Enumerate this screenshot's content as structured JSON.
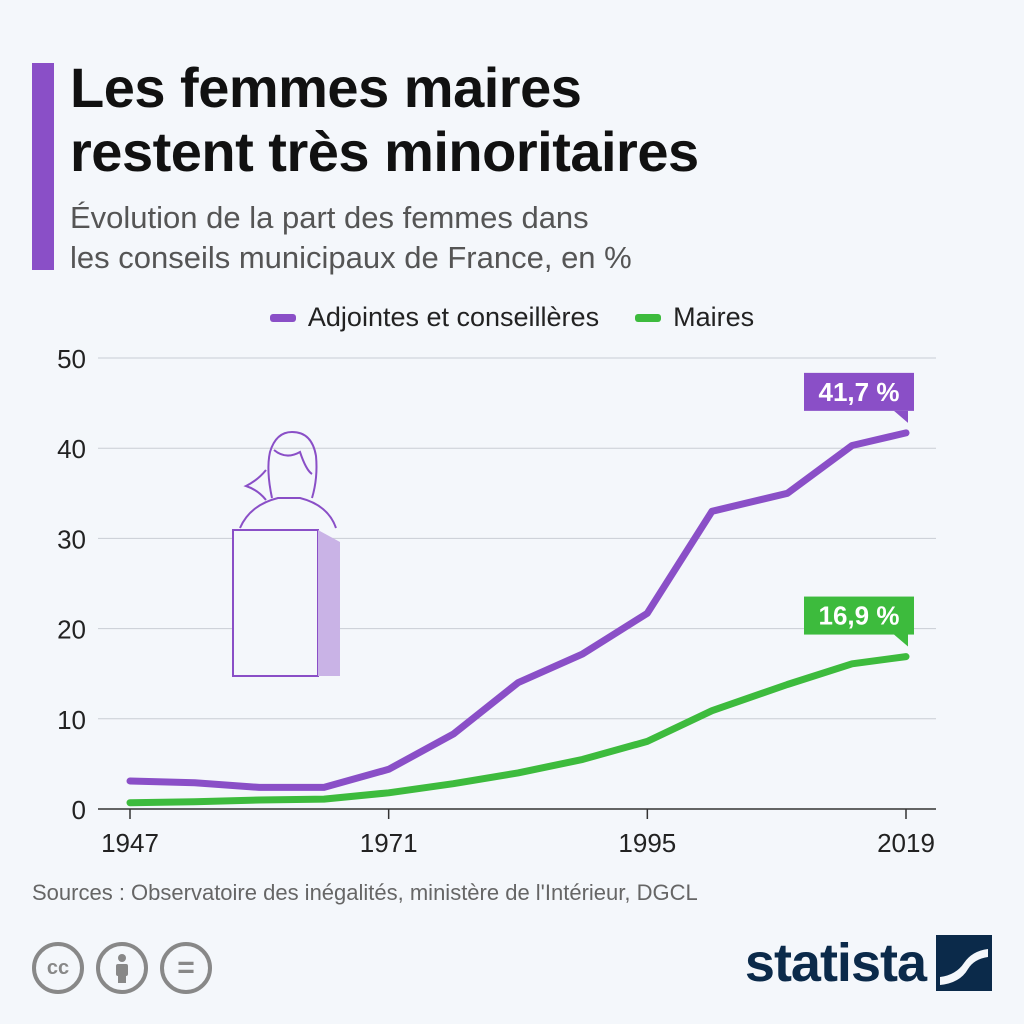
{
  "header": {
    "title_line1": "Les femmes maires",
    "title_line2": "restent très minoritaires",
    "subtitle_line1": "Évolution de la part des femmes dans",
    "subtitle_line2": "les conseils municipaux de France, en %"
  },
  "colors": {
    "accent": "#8a4fc7",
    "purple": "#8a4fc7",
    "green": "#3dbb3d",
    "brand": "#0b2a4a"
  },
  "chart_data": {
    "type": "line",
    "ylim": [
      0,
      50
    ],
    "yticks": [
      0,
      10,
      20,
      30,
      40,
      50
    ],
    "xlim": [
      1947,
      2019
    ],
    "xticks": [
      1947,
      1971,
      1995,
      2019
    ],
    "legend_placement": "top-center",
    "grid": true,
    "series": [
      {
        "name": "Adjointes et conseillères",
        "color": "#8a4fc7",
        "x": [
          1947,
          1953,
          1959,
          1965,
          1971,
          1977,
          1983,
          1989,
          1995,
          2001,
          2008,
          2014,
          2019
        ],
        "y": [
          3.1,
          2.9,
          2.4,
          2.4,
          4.4,
          8.3,
          14.0,
          17.2,
          21.7,
          33.0,
          35.0,
          40.3,
          41.7
        ],
        "end_label": "41,7 %"
      },
      {
        "name": "Maires",
        "color": "#3dbb3d",
        "x": [
          1947,
          1953,
          1959,
          1965,
          1971,
          1977,
          1983,
          1989,
          1995,
          2001,
          2008,
          2014,
          2019
        ],
        "y": [
          0.7,
          0.8,
          1.0,
          1.1,
          1.8,
          2.8,
          4.0,
          5.5,
          7.5,
          10.9,
          13.8,
          16.1,
          16.9
        ],
        "end_label": "16,9 %"
      }
    ]
  },
  "footer": {
    "source": "Sources : Observatoire des inégalités, ministère de l'Intérieur, DGCL",
    "cc_icons": [
      "cc-icon",
      "by-icon",
      "nd-icon"
    ],
    "cc_label": "cc",
    "nd_label": "=",
    "brand": "statista"
  }
}
